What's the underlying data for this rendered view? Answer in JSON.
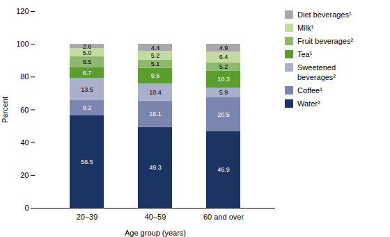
{
  "chart_data": {
    "type": "bar",
    "stacked": true,
    "xlabel": "Age group (years)",
    "ylabel": "Percent",
    "categories": [
      "20–39",
      "40–59",
      "60 and over"
    ],
    "series": [
      {
        "name": "Water²",
        "color": "#1c3461",
        "values": [
          56.5,
          49.3,
          46.9
        ]
      },
      {
        "name": "Coffee¹",
        "color": "#7b86b0",
        "values": [
          9.2,
          16.1,
          20.5
        ]
      },
      {
        "name": "Sweetened\nbeverages²",
        "color": "#aab0cc",
        "values": [
          13.5,
          10.4,
          5.9
        ]
      },
      {
        "name": "Tea¹",
        "color": "#5a9e2f",
        "values": [
          6.7,
          9.6,
          10.3
        ]
      },
      {
        "name": "Fruit beverages²",
        "color": "#8db96e",
        "values": [
          6.5,
          5.1,
          5.2
        ]
      },
      {
        "name": "Milk¹",
        "color": "#c2dca0",
        "values": [
          5.0,
          5.2,
          6.4
        ],
        "value_labels": [
          "5.0",
          "5.2",
          "6.4"
        ]
      },
      {
        "name": "Diet beverages¹",
        "color": "#a8a8a8",
        "values": [
          2.6,
          4.4,
          4.9
        ]
      }
    ],
    "ylim": [
      0,
      120
    ],
    "yticks": [
      0,
      20,
      40,
      60,
      80,
      100,
      120
    ],
    "data_labels": true,
    "grid": false,
    "legend": "right"
  }
}
